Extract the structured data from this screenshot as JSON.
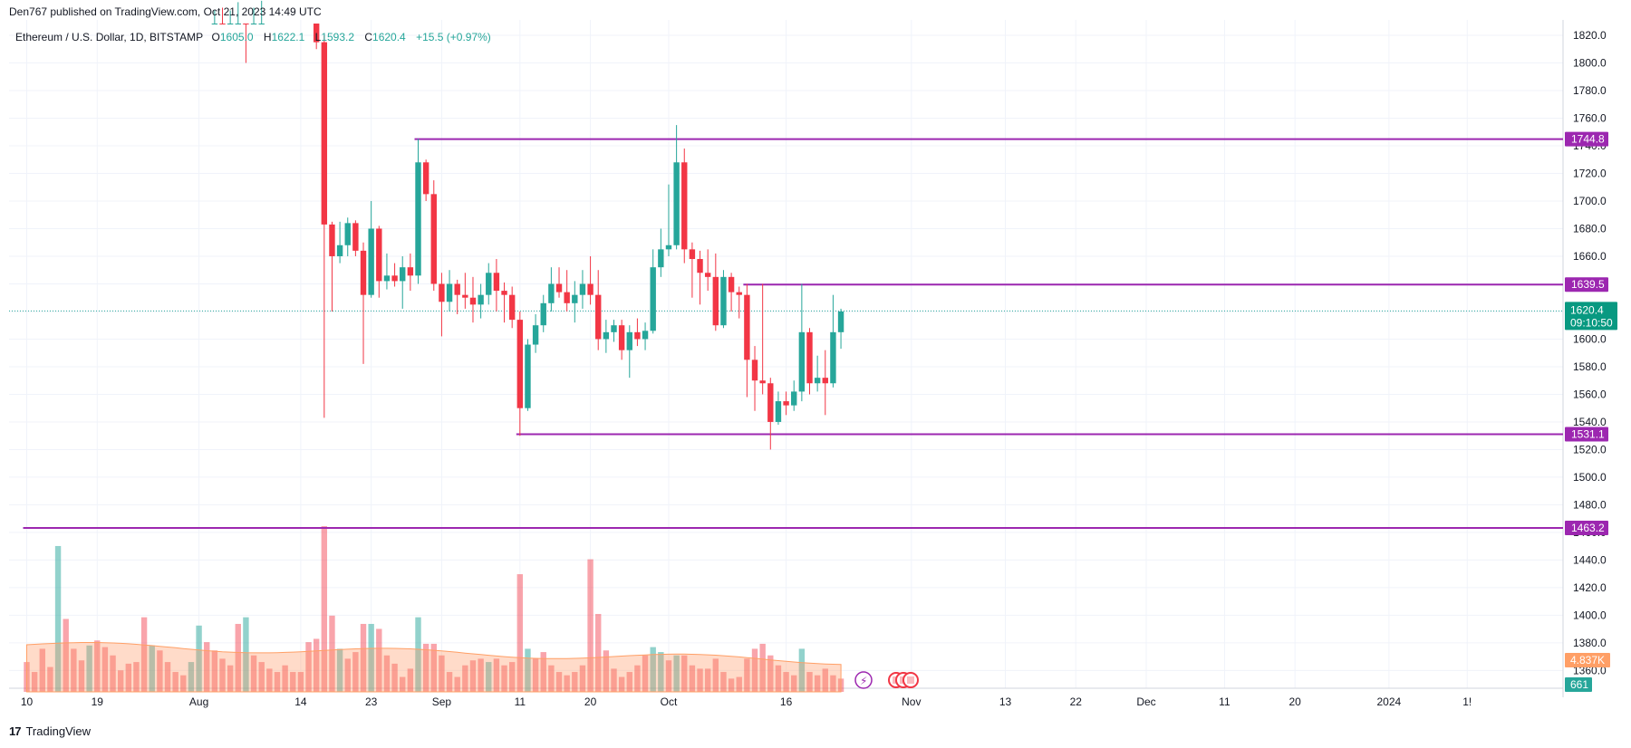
{
  "header": {
    "published": "Den767 published on TradingView.com, Oct 21, 2023 14:49 UTC"
  },
  "legend": {
    "symbol": "Ethereum / U.S. Dollar, 1D, BITSTAMP",
    "o_label": "O",
    "o_value": "1605.0",
    "h_label": "H",
    "h_value": "1622.1",
    "l_label": "L",
    "l_value": "1593.2",
    "c_label": "C",
    "c_value": "1620.4",
    "change": "+15.5 (+0.97%)"
  },
  "footer": {
    "brand": "TradingView"
  },
  "colors": {
    "up": "#26a69a",
    "down": "#f23645",
    "level": "#9c27b0",
    "volume_ma": "#ff9f66"
  },
  "chart_data": {
    "type": "candlestick",
    "symbol": "Ethereum / U.S. Dollar",
    "interval": "1D",
    "exchange": "BITSTAMP",
    "y_axis": {
      "ticks": [
        1820,
        1800,
        1780,
        1760,
        1740,
        1720,
        1700,
        1680,
        1660,
        1640,
        1620,
        1600,
        1580,
        1560,
        1540,
        1520,
        1500,
        1480,
        1460,
        1440,
        1420,
        1400,
        1380,
        1360
      ]
    },
    "x_axis_labels": [
      {
        "label": "10",
        "day": 0
      },
      {
        "label": "19",
        "day": 9
      },
      {
        "label": "Aug",
        "day": 22
      },
      {
        "label": "14",
        "day": 35
      },
      {
        "label": "23",
        "day": 44
      },
      {
        "label": "Sep",
        "day": 53
      },
      {
        "label": "11",
        "day": 63
      },
      {
        "label": "20",
        "day": 72
      },
      {
        "label": "Oct",
        "day": 82
      },
      {
        "label": "16",
        "day": 97
      },
      {
        "label": "Nov",
        "day": 113
      },
      {
        "label": "13",
        "day": 125
      },
      {
        "label": "22",
        "day": 134
      },
      {
        "label": "Dec",
        "day": 143
      },
      {
        "label": "11",
        "day": 153
      },
      {
        "label": "20",
        "day": 162
      },
      {
        "label": "2024",
        "day": 174
      },
      {
        "label": "1!",
        "day": 184
      }
    ],
    "horizontal_levels": [
      {
        "label": "1744.8",
        "value": 1744.8,
        "from_day": 50
      },
      {
        "label": "1639.5",
        "value": 1639.5,
        "from_day": 92
      },
      {
        "label": "1531.1",
        "value": 1531.1,
        "from_day": 63
      },
      {
        "label": "1463.2",
        "value": 1463.2,
        "from_day": 0
      }
    ],
    "last_price": {
      "value": "1620.4",
      "countdown": "09:10:50"
    },
    "volume": {
      "label": "4.837K",
      "ma_label": "661"
    },
    "candles": [
      {
        "d": 24,
        "o": 1845,
        "h": 1858,
        "l": 1838,
        "c": 1850
      },
      {
        "d": 25,
        "o": 1850,
        "h": 1855,
        "l": 1840,
        "c": 1846
      },
      {
        "d": 26,
        "o": 1846,
        "h": 1852,
        "l": 1838,
        "c": 1849
      },
      {
        "d": 27,
        "o": 1849,
        "h": 1856,
        "l": 1844,
        "c": 1852
      },
      {
        "d": 28,
        "o": 1852,
        "h": 1855,
        "l": 1800,
        "c": 1846
      },
      {
        "d": 29,
        "o": 1846,
        "h": 1852,
        "l": 1840,
        "c": 1850
      },
      {
        "d": 30,
        "o": 1850,
        "h": 1856,
        "l": 1845,
        "c": 1853
      },
      {
        "d": 37,
        "o": 1860,
        "h": 1865,
        "l": 1810,
        "c": 1815
      },
      {
        "d": 38,
        "o": 1815,
        "h": 1820,
        "l": 1543,
        "c": 1683
      },
      {
        "d": 39,
        "o": 1683,
        "h": 1685,
        "l": 1620,
        "c": 1660
      },
      {
        "d": 40,
        "o": 1660,
        "h": 1685,
        "l": 1655,
        "c": 1668
      },
      {
        "d": 41,
        "o": 1668,
        "h": 1688,
        "l": 1660,
        "c": 1684
      },
      {
        "d": 42,
        "o": 1684,
        "h": 1686,
        "l": 1660,
        "c": 1664
      },
      {
        "d": 43,
        "o": 1664,
        "h": 1670,
        "l": 1582,
        "c": 1632
      },
      {
        "d": 44,
        "o": 1632,
        "h": 1700,
        "l": 1630,
        "c": 1680
      },
      {
        "d": 45,
        "o": 1680,
        "h": 1682,
        "l": 1630,
        "c": 1642
      },
      {
        "d": 46,
        "o": 1642,
        "h": 1662,
        "l": 1636,
        "c": 1646
      },
      {
        "d": 47,
        "o": 1646,
        "h": 1655,
        "l": 1638,
        "c": 1642
      },
      {
        "d": 48,
        "o": 1642,
        "h": 1660,
        "l": 1622,
        "c": 1652
      },
      {
        "d": 49,
        "o": 1652,
        "h": 1662,
        "l": 1635,
        "c": 1646
      },
      {
        "d": 50,
        "o": 1646,
        "h": 1745,
        "l": 1640,
        "c": 1728
      },
      {
        "d": 51,
        "o": 1728,
        "h": 1730,
        "l": 1700,
        "c": 1705
      },
      {
        "d": 52,
        "o": 1705,
        "h": 1715,
        "l": 1635,
        "c": 1640
      },
      {
        "d": 53,
        "o": 1640,
        "h": 1648,
        "l": 1602,
        "c": 1627
      },
      {
        "d": 54,
        "o": 1627,
        "h": 1650,
        "l": 1620,
        "c": 1640
      },
      {
        "d": 55,
        "o": 1640,
        "h": 1643,
        "l": 1618,
        "c": 1632
      },
      {
        "d": 56,
        "o": 1632,
        "h": 1648,
        "l": 1622,
        "c": 1630
      },
      {
        "d": 57,
        "o": 1630,
        "h": 1645,
        "l": 1612,
        "c": 1625
      },
      {
        "d": 58,
        "o": 1625,
        "h": 1640,
        "l": 1615,
        "c": 1632
      },
      {
        "d": 59,
        "o": 1632,
        "h": 1655,
        "l": 1625,
        "c": 1648
      },
      {
        "d": 60,
        "o": 1648,
        "h": 1658,
        "l": 1620,
        "c": 1635
      },
      {
        "d": 61,
        "o": 1635,
        "h": 1641,
        "l": 1612,
        "c": 1632
      },
      {
        "d": 62,
        "o": 1632,
        "h": 1638,
        "l": 1608,
        "c": 1614
      },
      {
        "d": 63,
        "o": 1614,
        "h": 1620,
        "l": 1530,
        "c": 1550
      },
      {
        "d": 64,
        "o": 1550,
        "h": 1600,
        "l": 1548,
        "c": 1596
      },
      {
        "d": 65,
        "o": 1596,
        "h": 1618,
        "l": 1590,
        "c": 1610
      },
      {
        "d": 66,
        "o": 1610,
        "h": 1632,
        "l": 1605,
        "c": 1626
      },
      {
        "d": 67,
        "o": 1626,
        "h": 1652,
        "l": 1620,
        "c": 1640
      },
      {
        "d": 68,
        "o": 1640,
        "h": 1652,
        "l": 1630,
        "c": 1634
      },
      {
        "d": 69,
        "o": 1634,
        "h": 1650,
        "l": 1620,
        "c": 1626
      },
      {
        "d": 70,
        "o": 1626,
        "h": 1642,
        "l": 1612,
        "c": 1632
      },
      {
        "d": 71,
        "o": 1632,
        "h": 1650,
        "l": 1622,
        "c": 1640
      },
      {
        "d": 72,
        "o": 1640,
        "h": 1660,
        "l": 1625,
        "c": 1632
      },
      {
        "d": 73,
        "o": 1632,
        "h": 1650,
        "l": 1592,
        "c": 1600
      },
      {
        "d": 74,
        "o": 1600,
        "h": 1614,
        "l": 1590,
        "c": 1605
      },
      {
        "d": 75,
        "o": 1605,
        "h": 1614,
        "l": 1598,
        "c": 1610
      },
      {
        "d": 76,
        "o": 1610,
        "h": 1614,
        "l": 1585,
        "c": 1592
      },
      {
        "d": 77,
        "o": 1592,
        "h": 1610,
        "l": 1572,
        "c": 1605
      },
      {
        "d": 78,
        "o": 1605,
        "h": 1615,
        "l": 1595,
        "c": 1600
      },
      {
        "d": 79,
        "o": 1600,
        "h": 1612,
        "l": 1592,
        "c": 1606
      },
      {
        "d": 80,
        "o": 1606,
        "h": 1665,
        "l": 1604,
        "c": 1652
      },
      {
        "d": 81,
        "o": 1652,
        "h": 1680,
        "l": 1645,
        "c": 1665
      },
      {
        "d": 82,
        "o": 1665,
        "h": 1712,
        "l": 1660,
        "c": 1668
      },
      {
        "d": 83,
        "o": 1668,
        "h": 1755,
        "l": 1665,
        "c": 1728
      },
      {
        "d": 84,
        "o": 1728,
        "h": 1738,
        "l": 1655,
        "c": 1665
      },
      {
        "d": 85,
        "o": 1665,
        "h": 1670,
        "l": 1630,
        "c": 1658
      },
      {
        "d": 86,
        "o": 1658,
        "h": 1664,
        "l": 1625,
        "c": 1648
      },
      {
        "d": 87,
        "o": 1648,
        "h": 1665,
        "l": 1635,
        "c": 1645
      },
      {
        "d": 88,
        "o": 1645,
        "h": 1662,
        "l": 1606,
        "c": 1610
      },
      {
        "d": 89,
        "o": 1610,
        "h": 1650,
        "l": 1608,
        "c": 1645
      },
      {
        "d": 90,
        "o": 1645,
        "h": 1648,
        "l": 1620,
        "c": 1634
      },
      {
        "d": 91,
        "o": 1634,
        "h": 1638,
        "l": 1615,
        "c": 1632
      },
      {
        "d": 92,
        "o": 1632,
        "h": 1640,
        "l": 1558,
        "c": 1585
      },
      {
        "d": 93,
        "o": 1585,
        "h": 1595,
        "l": 1548,
        "c": 1570
      },
      {
        "d": 94,
        "o": 1570,
        "h": 1640,
        "l": 1560,
        "c": 1568
      },
      {
        "d": 95,
        "o": 1568,
        "h": 1572,
        "l": 1520,
        "c": 1540
      },
      {
        "d": 96,
        "o": 1540,
        "h": 1562,
        "l": 1538,
        "c": 1555
      },
      {
        "d": 97,
        "o": 1555,
        "h": 1562,
        "l": 1545,
        "c": 1552
      },
      {
        "d": 98,
        "o": 1552,
        "h": 1570,
        "l": 1548,
        "c": 1562
      },
      {
        "d": 99,
        "o": 1562,
        "h": 1640,
        "l": 1555,
        "c": 1605
      },
      {
        "d": 100,
        "o": 1605,
        "h": 1608,
        "l": 1560,
        "c": 1568
      },
      {
        "d": 101,
        "o": 1568,
        "h": 1588,
        "l": 1562,
        "c": 1572
      },
      {
        "d": 102,
        "o": 1572,
        "h": 1592,
        "l": 1545,
        "c": 1568
      },
      {
        "d": 103,
        "o": 1568,
        "h": 1632,
        "l": 1565,
        "c": 1605
      },
      {
        "d": 104,
        "o": 1605,
        "h": 1622,
        "l": 1593,
        "c": 1620
      }
    ],
    "volume_bars": [
      {
        "d": 0,
        "v": 0.18,
        "up": false
      },
      {
        "d": 1,
        "v": 0.12,
        "up": false
      },
      {
        "d": 2,
        "v": 0.26,
        "up": false
      },
      {
        "d": 3,
        "v": 0.15,
        "up": false
      },
      {
        "d": 4,
        "v": 0.88,
        "up": true
      },
      {
        "d": 5,
        "v": 0.44,
        "up": false
      },
      {
        "d": 6,
        "v": 0.26,
        "up": false
      },
      {
        "d": 7,
        "v": 0.19,
        "up": false
      },
      {
        "d": 8,
        "v": 0.28,
        "up": true
      },
      {
        "d": 9,
        "v": 0.31,
        "up": false
      },
      {
        "d": 10,
        "v": 0.27,
        "up": false
      },
      {
        "d": 11,
        "v": 0.22,
        "up": false
      },
      {
        "d": 12,
        "v": 0.13,
        "up": false
      },
      {
        "d": 13,
        "v": 0.17,
        "up": false
      },
      {
        "d": 14,
        "v": 0.18,
        "up": false
      },
      {
        "d": 15,
        "v": 0.45,
        "up": false
      },
      {
        "d": 16,
        "v": 0.28,
        "up": true
      },
      {
        "d": 17,
        "v": 0.25,
        "up": false
      },
      {
        "d": 18,
        "v": 0.18,
        "up": false
      },
      {
        "d": 19,
        "v": 0.12,
        "up": false
      },
      {
        "d": 20,
        "v": 0.1,
        "up": false
      },
      {
        "d": 21,
        "v": 0.18,
        "up": true
      },
      {
        "d": 22,
        "v": 0.4,
        "up": true
      },
      {
        "d": 23,
        "v": 0.3,
        "up": false
      },
      {
        "d": 24,
        "v": 0.25,
        "up": false
      },
      {
        "d": 25,
        "v": 0.2,
        "up": false
      },
      {
        "d": 26,
        "v": 0.16,
        "up": false
      },
      {
        "d": 27,
        "v": 0.41,
        "up": false
      },
      {
        "d": 28,
        "v": 0.45,
        "up": true
      },
      {
        "d": 29,
        "v": 0.22,
        "up": false
      },
      {
        "d": 30,
        "v": 0.18,
        "up": false
      },
      {
        "d": 31,
        "v": 0.14,
        "up": false
      },
      {
        "d": 32,
        "v": 0.12,
        "up": false
      },
      {
        "d": 33,
        "v": 0.16,
        "up": false
      },
      {
        "d": 34,
        "v": 0.12,
        "up": false
      },
      {
        "d": 35,
        "v": 0.12,
        "up": false
      },
      {
        "d": 36,
        "v": 0.3,
        "up": false
      },
      {
        "d": 37,
        "v": 0.32,
        "up": false
      },
      {
        "d": 38,
        "v": 1.0,
        "up": false
      },
      {
        "d": 39,
        "v": 0.46,
        "up": false
      },
      {
        "d": 40,
        "v": 0.26,
        "up": true
      },
      {
        "d": 41,
        "v": 0.2,
        "up": false
      },
      {
        "d": 42,
        "v": 0.24,
        "up": false
      },
      {
        "d": 43,
        "v": 0.41,
        "up": false
      },
      {
        "d": 44,
        "v": 0.41,
        "up": true
      },
      {
        "d": 45,
        "v": 0.38,
        "up": false
      },
      {
        "d": 46,
        "v": 0.22,
        "up": false
      },
      {
        "d": 47,
        "v": 0.17,
        "up": false
      },
      {
        "d": 48,
        "v": 0.09,
        "up": false
      },
      {
        "d": 49,
        "v": 0.14,
        "up": false
      },
      {
        "d": 50,
        "v": 0.45,
        "up": true
      },
      {
        "d": 51,
        "v": 0.29,
        "up": false
      },
      {
        "d": 52,
        "v": 0.29,
        "up": false
      },
      {
        "d": 53,
        "v": 0.22,
        "up": false
      },
      {
        "d": 54,
        "v": 0.12,
        "up": false
      },
      {
        "d": 55,
        "v": 0.09,
        "up": false
      },
      {
        "d": 56,
        "v": 0.16,
        "up": false
      },
      {
        "d": 57,
        "v": 0.19,
        "up": false
      },
      {
        "d": 58,
        "v": 0.2,
        "up": false
      },
      {
        "d": 59,
        "v": 0.18,
        "up": true
      },
      {
        "d": 60,
        "v": 0.2,
        "up": false
      },
      {
        "d": 61,
        "v": 0.16,
        "up": false
      },
      {
        "d": 62,
        "v": 0.18,
        "up": false
      },
      {
        "d": 63,
        "v": 0.71,
        "up": false
      },
      {
        "d": 64,
        "v": 0.26,
        "up": true
      },
      {
        "d": 65,
        "v": 0.2,
        "up": false
      },
      {
        "d": 66,
        "v": 0.24,
        "up": false
      },
      {
        "d": 67,
        "v": 0.16,
        "up": false
      },
      {
        "d": 68,
        "v": 0.12,
        "up": false
      },
      {
        "d": 69,
        "v": 0.1,
        "up": false
      },
      {
        "d": 70,
        "v": 0.12,
        "up": false
      },
      {
        "d": 71,
        "v": 0.16,
        "up": false
      },
      {
        "d": 72,
        "v": 0.8,
        "up": false
      },
      {
        "d": 73,
        "v": 0.47,
        "up": false
      },
      {
        "d": 74,
        "v": 0.25,
        "up": false
      },
      {
        "d": 75,
        "v": 0.14,
        "up": false
      },
      {
        "d": 76,
        "v": 0.09,
        "up": false
      },
      {
        "d": 77,
        "v": 0.12,
        "up": false
      },
      {
        "d": 78,
        "v": 0.16,
        "up": false
      },
      {
        "d": 79,
        "v": 0.22,
        "up": false
      },
      {
        "d": 80,
        "v": 0.27,
        "up": true
      },
      {
        "d": 81,
        "v": 0.24,
        "up": true
      },
      {
        "d": 82,
        "v": 0.19,
        "up": false
      },
      {
        "d": 83,
        "v": 0.22,
        "up": true
      },
      {
        "d": 84,
        "v": 0.22,
        "up": false
      },
      {
        "d": 85,
        "v": 0.16,
        "up": false
      },
      {
        "d": 86,
        "v": 0.14,
        "up": false
      },
      {
        "d": 87,
        "v": 0.14,
        "up": false
      },
      {
        "d": 88,
        "v": 0.2,
        "up": false
      },
      {
        "d": 89,
        "v": 0.12,
        "up": false
      },
      {
        "d": 90,
        "v": 0.08,
        "up": false
      },
      {
        "d": 91,
        "v": 0.09,
        "up": false
      },
      {
        "d": 92,
        "v": 0.2,
        "up": false
      },
      {
        "d": 93,
        "v": 0.26,
        "up": false
      },
      {
        "d": 94,
        "v": 0.29,
        "up": false
      },
      {
        "d": 95,
        "v": 0.22,
        "up": false
      },
      {
        "d": 96,
        "v": 0.16,
        "up": false
      },
      {
        "d": 97,
        "v": 0.12,
        "up": false
      },
      {
        "d": 98,
        "v": 0.1,
        "up": false
      },
      {
        "d": 99,
        "v": 0.26,
        "up": true
      },
      {
        "d": 100,
        "v": 0.12,
        "up": false
      },
      {
        "d": 101,
        "v": 0.1,
        "up": false
      },
      {
        "d": 102,
        "v": 0.14,
        "up": false
      },
      {
        "d": 103,
        "v": 0.1,
        "up": false
      },
      {
        "d": 104,
        "v": 0.08,
        "up": false
      }
    ]
  }
}
